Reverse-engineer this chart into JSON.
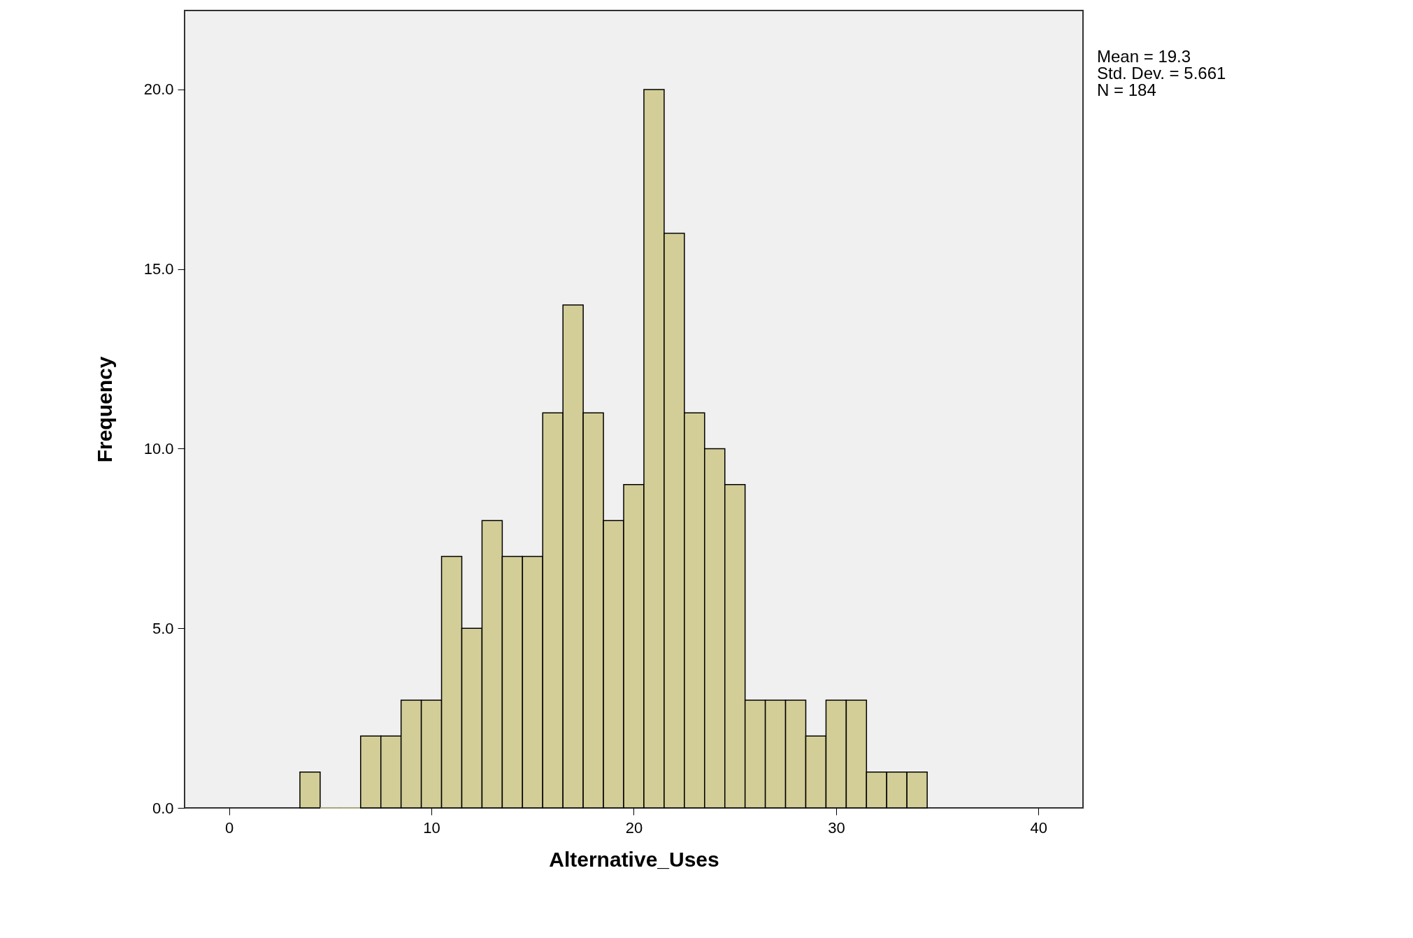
{
  "chart_data": {
    "type": "histogram",
    "xlabel": "Alternative_Uses",
    "ylabel": "Frequency",
    "bins": [
      3.5,
      4.5,
      5.5,
      6.5,
      7.5,
      8.5,
      9.5,
      10.5,
      11.5,
      12.5,
      13.5,
      14.5,
      15.5,
      16.5,
      17.5,
      18.5,
      19.5,
      20.5,
      21.5,
      22.5,
      23.5,
      24.5,
      25.5,
      26.5,
      27.5,
      28.5,
      29.5,
      30.5,
      31.5,
      32.5,
      33.5,
      34.5
    ],
    "values": [
      1,
      0,
      0,
      2,
      2,
      3,
      3,
      7,
      5,
      8,
      7,
      7,
      11,
      14,
      11,
      8,
      9,
      20,
      16,
      11,
      10,
      9,
      3,
      3,
      3,
      2,
      3,
      3,
      1,
      1,
      1
    ],
    "color": "#d3ce97",
    "xlim": [
      -2.2,
      42.2
    ],
    "xticks": [
      0,
      10,
      20,
      30,
      40
    ],
    "ylim": [
      0,
      22.2
    ],
    "yticks": [
      {
        "value": 0,
        "label": "0.0"
      },
      {
        "value": 5,
        "label": "5.0"
      },
      {
        "value": 10,
        "label": "10.0"
      },
      {
        "value": 15,
        "label": "15.0"
      },
      {
        "value": 20,
        "label": "20.0"
      }
    ],
    "grid": false,
    "annotations": [
      "Mean = 19.3",
      "Std. Dev. = 5.661",
      "N = 184"
    ]
  }
}
